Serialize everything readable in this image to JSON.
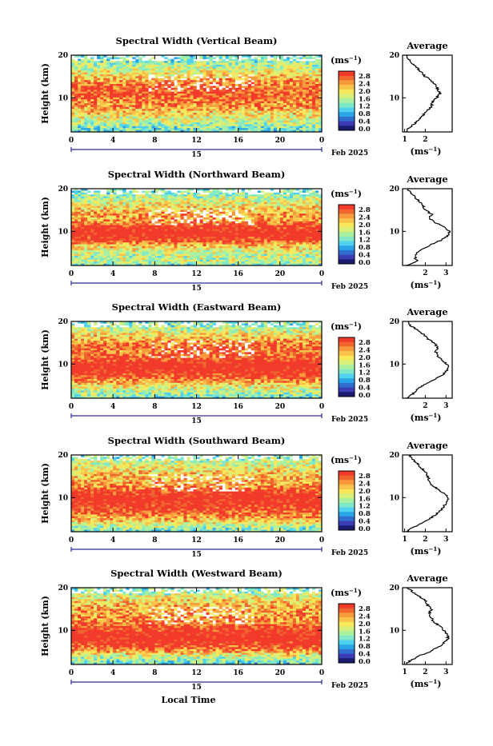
{
  "figure": {
    "x_label": "Local Time",
    "date_day": "15",
    "date_month": "Feb 2025",
    "y_label": "Height (km)",
    "colorbar_unit": "(ms",
    "colorbar_unit_exp": "−1",
    "avg_title": "Average",
    "avg_unit": "(ms",
    "avg_unit_exp": "−1",
    "x_ticks": [
      "0",
      "4",
      "8",
      "12",
      "16",
      "20",
      "0"
    ],
    "y_ticks": [
      "20",
      "10"
    ],
    "colorbar_ticks": [
      "2.8",
      "2.4",
      "2.0",
      "1.6",
      "1.2",
      "0.8",
      "0.4",
      "0.0"
    ],
    "colormap": [
      "#1a1a6e",
      "#3c3cb4",
      "#2f6fd0",
      "#2aa5e8",
      "#4fd2f0",
      "#7ee8c8",
      "#a9f0a0",
      "#d6f07a",
      "#f6e85a",
      "#f9c248",
      "#f69a3c",
      "#f0642e",
      "#f23a2a"
    ]
  },
  "chart_data": [
    {
      "type": "heatmap",
      "title": "Spectral Width (Vertical Beam)",
      "x_range_hours": [
        0,
        24
      ],
      "y_range_km": [
        2,
        20
      ],
      "color_range_ms": [
        0.0,
        2.8
      ],
      "average_profile": {
        "x_ticks": [
          "1",
          "2"
        ],
        "height_km": [
          2,
          3,
          4,
          5,
          6,
          7,
          8,
          9,
          10,
          11,
          12,
          13,
          14,
          15,
          16,
          17,
          18,
          19,
          20
        ],
        "value_ms": [
          1.05,
          1.2,
          1.5,
          1.7,
          1.9,
          2.1,
          2.3,
          2.35,
          2.55,
          2.7,
          2.6,
          2.5,
          2.3,
          2.0,
          1.8,
          1.6,
          1.4,
          1.2,
          1.05
        ]
      }
    },
    {
      "type": "heatmap",
      "title": "Spectral Width (Northward Beam)",
      "x_range_hours": [
        0,
        24
      ],
      "y_range_km": [
        2,
        20
      ],
      "color_range_ms": [
        0.0,
        2.8
      ],
      "average_profile": {
        "x_ticks": [
          "2",
          "3"
        ],
        "height_km": [
          2,
          3,
          4,
          5,
          6,
          7,
          8,
          9,
          10,
          11,
          12,
          13,
          14,
          15,
          16,
          17,
          18,
          19,
          20
        ],
        "value_ms": [
          1.1,
          1.6,
          1.5,
          1.6,
          1.9,
          2.3,
          2.8,
          3.1,
          3.15,
          2.9,
          2.5,
          2.2,
          2.3,
          2.0,
          1.9,
          1.7,
          1.5,
          1.3,
          1.15
        ]
      }
    },
    {
      "type": "heatmap",
      "title": "Spectral Width (Eastward Beam)",
      "x_range_hours": [
        0,
        24
      ],
      "y_range_km": [
        2,
        20
      ],
      "color_range_ms": [
        0.0,
        2.8
      ],
      "average_profile": {
        "x_ticks": [
          "2",
          "3"
        ],
        "height_km": [
          2,
          3,
          4,
          5,
          6,
          7,
          8,
          9,
          10,
          11,
          12,
          13,
          14,
          15,
          16,
          17,
          18,
          19,
          20
        ],
        "value_ms": [
          1.1,
          1.4,
          1.6,
          1.9,
          2.3,
          2.7,
          2.95,
          3.1,
          3.05,
          2.8,
          2.6,
          2.5,
          2.6,
          2.4,
          2.1,
          1.9,
          1.6,
          1.3,
          1.15
        ]
      }
    },
    {
      "type": "heatmap",
      "title": "Spectral Width (Southward Beam)",
      "x_range_hours": [
        0,
        24
      ],
      "y_range_km": [
        2,
        20
      ],
      "color_range_ms": [
        0.0,
        2.8
      ],
      "average_profile": {
        "x_ticks": [
          "1",
          "2",
          "3"
        ],
        "height_km": [
          2,
          3,
          4,
          5,
          6,
          7,
          8,
          9,
          10,
          11,
          12,
          13,
          14,
          15,
          16,
          17,
          18,
          19,
          20
        ],
        "value_ms": [
          1.1,
          1.4,
          1.8,
          2.2,
          2.5,
          2.75,
          2.9,
          3.05,
          3.1,
          2.9,
          2.6,
          2.3,
          2.2,
          2.1,
          2.0,
          1.8,
          1.6,
          1.4,
          1.2
        ]
      }
    },
    {
      "type": "heatmap",
      "title": "Spectral Width (Westward Beam)",
      "x_range_hours": [
        0,
        24
      ],
      "y_range_km": [
        2,
        20
      ],
      "color_range_ms": [
        0.0,
        2.8
      ],
      "average_profile": {
        "x_ticks": [
          "1",
          "2",
          "3"
        ],
        "height_km": [
          2,
          3,
          4,
          5,
          6,
          7,
          8,
          9,
          10,
          11,
          12,
          13,
          14,
          15,
          16,
          17,
          18,
          19,
          20
        ],
        "value_ms": [
          1.05,
          1.3,
          1.7,
          2.2,
          2.6,
          2.9,
          3.1,
          3.05,
          2.9,
          2.7,
          2.4,
          2.3,
          2.2,
          2.3,
          2.1,
          2.0,
          1.7,
          1.4,
          1.15
        ]
      }
    }
  ]
}
